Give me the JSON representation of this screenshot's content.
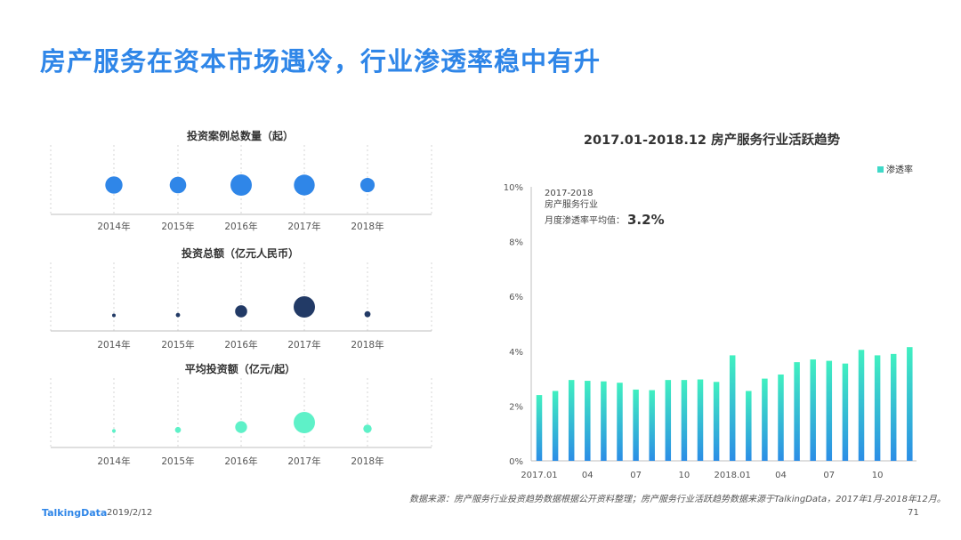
{
  "page": {
    "title": "房产服务在资本市场遇冷，行业渗透率稳中有升",
    "source_note": "数据来源：房产服务行业投资趋势数据根据公开资料整理；房产服务行业活跃趋势数据来源于TalkingData，2017年1月-2018年12月。",
    "brand": "TalkingData",
    "date": "2019/2/12",
    "page_number": "71"
  },
  "colors": {
    "title_blue": "#2f86e8",
    "bubble_blue": "#2f86e8",
    "bubble_navy": "#223a66",
    "bubble_mint": "#5ef1c8",
    "bar_top": "#40f0c0",
    "bar_bottom": "#2b8de6"
  },
  "chart_data": [
    {
      "type": "scatter",
      "title": "投资案例总数量（起）",
      "categories": [
        "2014年",
        "2015年",
        "2016年",
        "2017年",
        "2018年"
      ],
      "values": [
        13,
        12,
        20,
        19,
        9
      ],
      "color": "#2f86e8"
    },
    {
      "type": "scatter",
      "title": "投资总额（亿元人民币）",
      "categories": [
        "2014年",
        "2015年",
        "2016年",
        "2017年",
        "2018年"
      ],
      "values": [
        0.5,
        1,
        8,
        25,
        2
      ],
      "color": "#223a66"
    },
    {
      "type": "scatter",
      "title": "平均投资额（亿元/起）",
      "categories": [
        "2014年",
        "2015年",
        "2016年",
        "2017年",
        "2018年"
      ],
      "values": [
        0.04,
        0.1,
        0.4,
        1.3,
        0.2
      ],
      "color": "#5ef1c8"
    },
    {
      "type": "bar",
      "title": "2017.01-2018.12   房产服务行业活跃趋势",
      "legend": "渗透率",
      "legend_position": "top-right",
      "x_tick_labels": [
        "2017.01",
        "04",
        "07",
        "10",
        "2018.01",
        "04",
        "07",
        "10"
      ],
      "y_ticks": [
        "0%",
        "2%",
        "4%",
        "6%",
        "8%",
        "10%"
      ],
      "ylim": [
        0,
        10
      ],
      "values": [
        2.4,
        2.55,
        2.95,
        2.92,
        2.9,
        2.85,
        2.6,
        2.58,
        2.95,
        2.95,
        2.97,
        2.88,
        3.85,
        2.55,
        3.0,
        3.15,
        3.6,
        3.7,
        3.65,
        3.55,
        4.05,
        3.85,
        3.9,
        4.15
      ],
      "annotation": {
        "line1": "2017-2018",
        "line2": "房产服务行业",
        "line3": "月度渗透率平均值：",
        "value": "3.2%"
      }
    }
  ]
}
